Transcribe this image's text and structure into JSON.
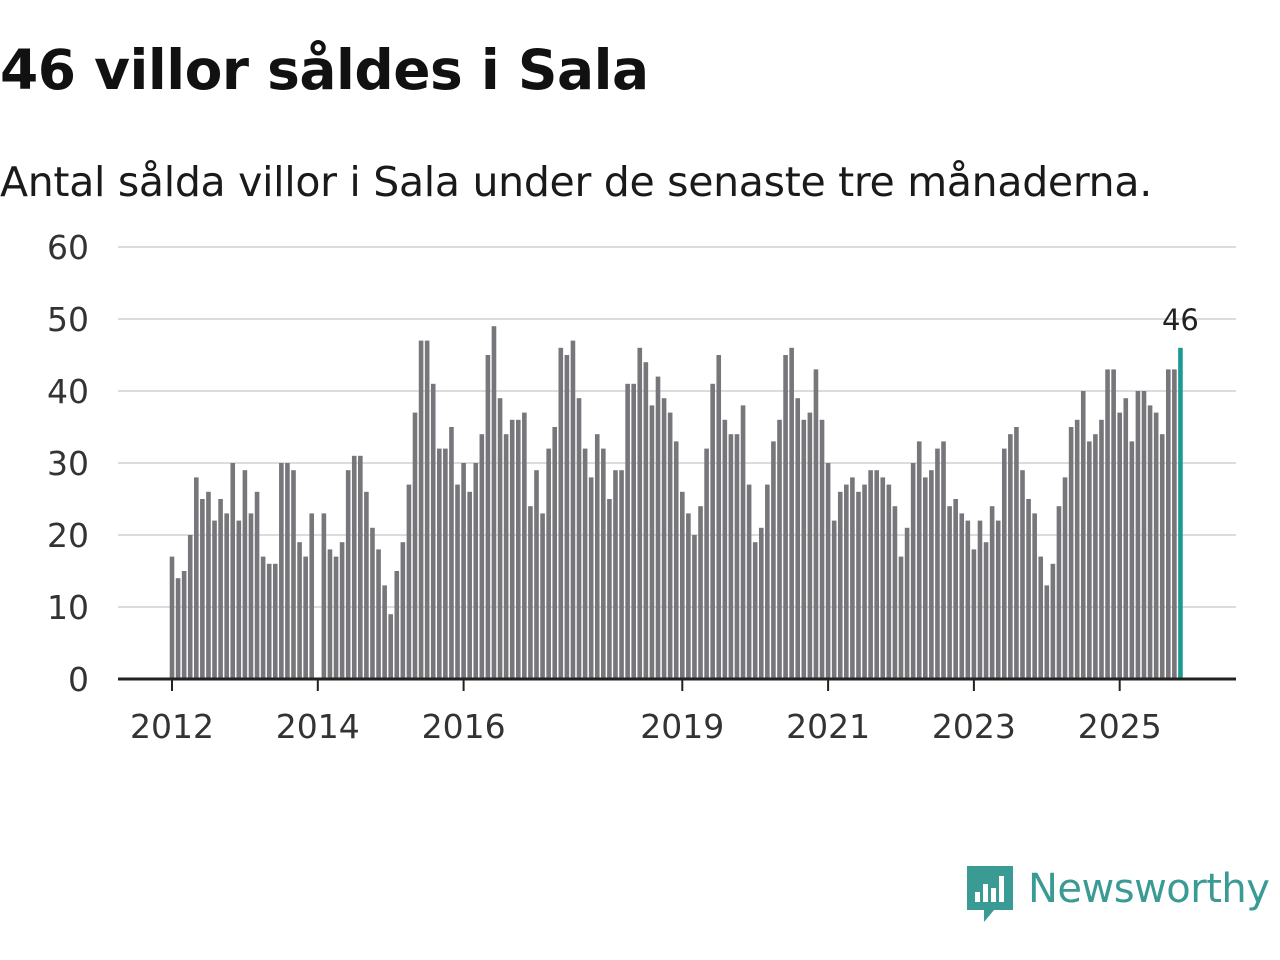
{
  "header": {
    "title": "46 villor såldes i Sala",
    "subtitle": "Antal sålda villor i Sala under de senaste tre månaderna."
  },
  "chart_data": {
    "type": "bar",
    "title": "46 villor såldes i Sala",
    "subtitle": "Antal sålda villor i Sala under de senaste tre månaderna.",
    "xlabel": "",
    "ylabel": "",
    "ylim": [
      0,
      60
    ],
    "yticks": [
      0,
      10,
      20,
      30,
      40,
      50,
      60
    ],
    "grid": true,
    "start": "2012-01",
    "frequency": "monthly",
    "xtick_labels": [
      {
        "label": "2012",
        "index": 0
      },
      {
        "label": "2014",
        "index": 24
      },
      {
        "label": "2016",
        "index": 48
      },
      {
        "label": "2019",
        "index": 84
      },
      {
        "label": "2021",
        "index": 108
      },
      {
        "label": "2023",
        "index": 132
      },
      {
        "label": "2025",
        "index": 156
      }
    ],
    "values": [
      17,
      14,
      15,
      20,
      28,
      25,
      26,
      22,
      25,
      23,
      30,
      22,
      29,
      23,
      26,
      17,
      16,
      16,
      30,
      30,
      29,
      19,
      17,
      23,
      0,
      23,
      18,
      17,
      19,
      29,
      31,
      31,
      26,
      21,
      18,
      13,
      9,
      15,
      19,
      27,
      37,
      47,
      47,
      41,
      32,
      32,
      35,
      27,
      30,
      26,
      30,
      34,
      45,
      49,
      39,
      34,
      36,
      36,
      37,
      24,
      29,
      23,
      32,
      35,
      46,
      45,
      47,
      39,
      32,
      28,
      34,
      32,
      25,
      29,
      29,
      41,
      41,
      46,
      44,
      38,
      42,
      39,
      37,
      33,
      26,
      23,
      20,
      24,
      32,
      41,
      45,
      36,
      34,
      34,
      38,
      27,
      19,
      21,
      27,
      33,
      36,
      45,
      46,
      39,
      36,
      37,
      43,
      36,
      30,
      22,
      26,
      27,
      28,
      26,
      27,
      29,
      29,
      28,
      27,
      24,
      17,
      21,
      30,
      33,
      28,
      29,
      32,
      33,
      24,
      25,
      23,
      22,
      18,
      22,
      19,
      24,
      22,
      32,
      34,
      35,
      29,
      25,
      23,
      17,
      13,
      16,
      24,
      28,
      35,
      36,
      40,
      33,
      34,
      36,
      43,
      43,
      37,
      39,
      33,
      40,
      40,
      38,
      37,
      34,
      43,
      43,
      46
    ],
    "highlight": {
      "index": 166,
      "value": 46,
      "label": "46",
      "color": "#1a9a90"
    },
    "bar_color": "#76767b"
  },
  "logo": {
    "text": "Newsworthy",
    "icon": "newsworthy-logo-icon",
    "color": "#3a9a94"
  }
}
